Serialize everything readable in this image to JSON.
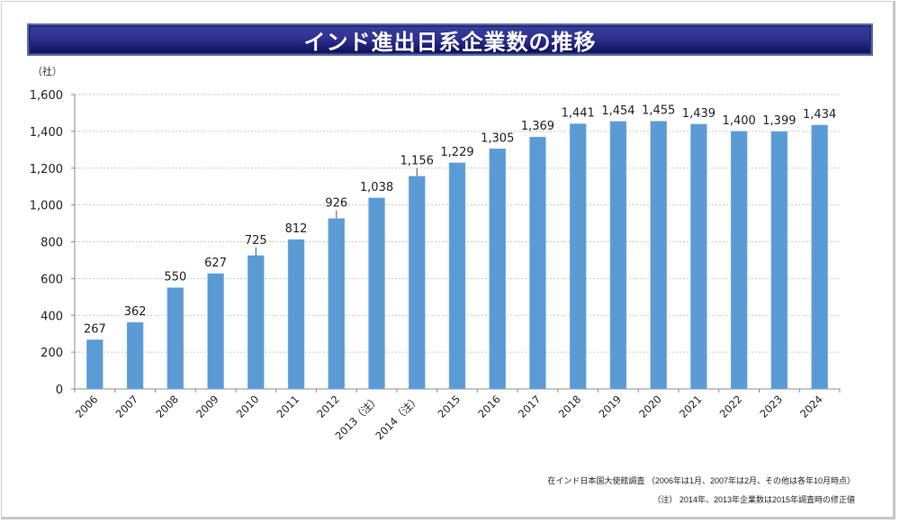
{
  "title": "インド進出日系企業数の推移",
  "unit_label": "（社）",
  "source_text": "在インド日本国大使館調査 （2006年は1月、2007年は2月、その他は各年10月時点）",
  "note_text": "（注） 2014年、2013年企業数は2015年調査時の修正値",
  "colors": {
    "bar": "#5b9bd5",
    "title_bg": "#1f1f7a",
    "title_text": "#ffffff"
  },
  "chart_data": {
    "type": "bar",
    "title": "インド進出日系企業数の推移",
    "xlabel": "",
    "ylabel": "（社）",
    "ylim": [
      0,
      1600
    ],
    "yticks": [
      0,
      200,
      400,
      600,
      800,
      1000,
      1200,
      1400,
      1600
    ],
    "ytick_labels": [
      "0",
      "200",
      "400",
      "600",
      "800",
      "1,000",
      "1,200",
      "1,400",
      "1,600"
    ],
    "grid": true,
    "categories": [
      "2006",
      "2007",
      "2008",
      "2009",
      "2010",
      "2011",
      "2012",
      "2013（注）",
      "2014（注）",
      "2015",
      "2016",
      "2017",
      "2018",
      "2019",
      "2020",
      "2021",
      "2022",
      "2023",
      "2024"
    ],
    "values": [
      267,
      362,
      550,
      627,
      725,
      812,
      926,
      1038,
      1156,
      1229,
      1305,
      1369,
      1441,
      1454,
      1455,
      1439,
      1400,
      1399,
      1434
    ],
    "data_labels": [
      "267",
      "362",
      "550",
      "627",
      "725",
      "812",
      "926",
      "1,038",
      "1,156",
      "1,229",
      "1,305",
      "1,369",
      "1,441",
      "1,454",
      "1,455",
      "1,439",
      "1,400",
      "1,399",
      "1,434"
    ],
    "leader_lines": [
      "2010",
      "2012",
      "2014（注）"
    ]
  }
}
